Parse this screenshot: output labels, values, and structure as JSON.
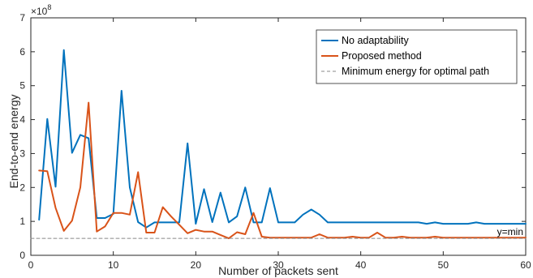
{
  "chart_data": {
    "type": "line",
    "xlabel": "Number of packets sent",
    "ylabel": "End-to-end energy",
    "y_exponent_label": "×10",
    "y_exponent_power": "8",
    "y_multiplier": 100000000,
    "xlim": [
      0,
      60
    ],
    "ylim": [
      0,
      7
    ],
    "xticks": [
      0,
      10,
      20,
      30,
      40,
      50,
      60
    ],
    "yticks": [
      0,
      1,
      2,
      3,
      4,
      5,
      6,
      7
    ],
    "grid": false,
    "legend_position": "top-right",
    "annotation": "y=min",
    "min_energy": 0.5,
    "series": [
      {
        "name": "No adaptability",
        "color": "#0072BD",
        "style": "solid",
        "x": [
          1,
          2,
          3,
          4,
          5,
          6,
          7,
          8,
          9,
          10,
          11,
          12,
          13,
          14,
          15,
          16,
          17,
          18,
          19,
          20,
          21,
          22,
          23,
          24,
          25,
          26,
          27,
          28,
          29,
          30,
          31,
          32,
          33,
          34,
          35,
          36,
          37,
          38,
          39,
          40,
          41,
          42,
          43,
          44,
          45,
          46,
          47,
          48,
          49,
          50,
          51,
          52,
          53,
          54,
          55,
          56,
          57,
          58,
          59,
          60
        ],
        "values": [
          1.05,
          4.02,
          2.02,
          6.05,
          3.02,
          3.55,
          3.45,
          1.1,
          1.1,
          1.22,
          4.85,
          2.0,
          0.98,
          0.82,
          0.97,
          0.97,
          0.97,
          0.97,
          3.3,
          0.93,
          1.95,
          0.98,
          1.85,
          0.97,
          1.15,
          2.0,
          0.97,
          0.97,
          1.98,
          0.97,
          0.97,
          0.97,
          1.2,
          1.35,
          1.2,
          0.97,
          0.97,
          0.97,
          0.97,
          0.97,
          0.97,
          0.97,
          0.97,
          0.97,
          0.97,
          0.97,
          0.97,
          0.93,
          0.97,
          0.93,
          0.93,
          0.93,
          0.93,
          0.97,
          0.93,
          0.93,
          0.93,
          0.93,
          0.93,
          0.93
        ]
      },
      {
        "name": "Proposed method",
        "color": "#D95319",
        "style": "solid",
        "x": [
          1,
          2,
          3,
          4,
          5,
          6,
          7,
          8,
          9,
          10,
          11,
          12,
          13,
          14,
          15,
          16,
          17,
          18,
          19,
          20,
          21,
          22,
          23,
          24,
          25,
          26,
          27,
          28,
          29,
          30,
          31,
          32,
          33,
          34,
          35,
          36,
          37,
          38,
          39,
          40,
          41,
          42,
          43,
          44,
          45,
          46,
          47,
          48,
          49,
          50,
          51,
          52,
          53,
          54,
          55,
          56,
          57,
          58,
          59,
          60
        ],
        "values": [
          2.5,
          2.48,
          1.4,
          0.72,
          1.02,
          2.0,
          4.5,
          0.7,
          0.85,
          1.25,
          1.25,
          1.2,
          2.45,
          0.67,
          0.67,
          1.42,
          1.15,
          0.9,
          0.65,
          0.75,
          0.7,
          0.7,
          0.6,
          0.5,
          0.68,
          0.62,
          1.25,
          0.55,
          0.52,
          0.52,
          0.52,
          0.52,
          0.52,
          0.52,
          0.62,
          0.52,
          0.52,
          0.52,
          0.55,
          0.52,
          0.52,
          0.67,
          0.52,
          0.52,
          0.55,
          0.52,
          0.52,
          0.52,
          0.55,
          0.52,
          0.52,
          0.52,
          0.52,
          0.52,
          0.52,
          0.52,
          0.52,
          0.52,
          0.52,
          0.52
        ]
      },
      {
        "name": "Minimum energy for optimal path",
        "color": "#888888",
        "style": "dashed",
        "x": [
          0,
          60
        ],
        "values": [
          0.5,
          0.5
        ]
      }
    ]
  }
}
